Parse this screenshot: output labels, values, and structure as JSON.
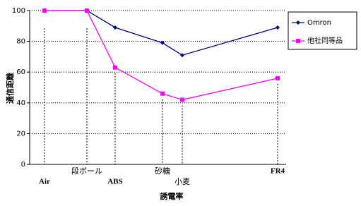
{
  "chart_data": {
    "type": "line",
    "x_label": "誘電率",
    "y_label": "通信距離",
    "categories": [
      "Air",
      "段ボール",
      "ABS",
      "砂糖",
      "小麦",
      "FR4"
    ],
    "series": [
      {
        "name": "Omron",
        "color": "#000080",
        "marker": "diamond",
        "values": [
          100,
          100,
          89,
          79,
          71,
          89
        ]
      },
      {
        "name": "他社同等品",
        "color": "#ff00ff",
        "marker": "square",
        "values": [
          100,
          100,
          63,
          46,
          42,
          56
        ]
      }
    ],
    "ylim": [
      0,
      100
    ],
    "yticks": [
      0,
      20,
      40,
      60,
      80,
      100
    ],
    "grid": true,
    "legend": "right"
  }
}
